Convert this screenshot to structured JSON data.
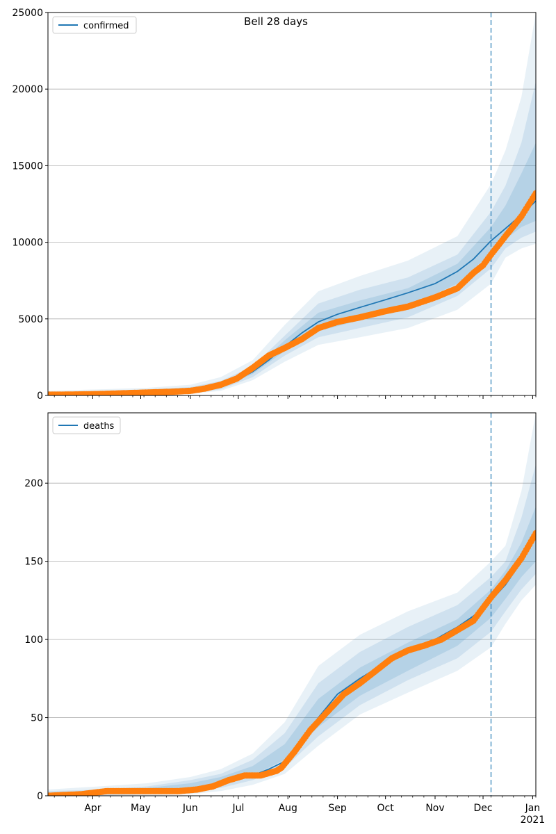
{
  "figure": {
    "title": "Bell 28 days"
  },
  "chart_data": [
    {
      "type": "line",
      "ylim": [
        0,
        25000
      ],
      "yticks": [
        0,
        5000,
        10000,
        15000,
        20000,
        25000
      ],
      "ytick_labels": [
        "0",
        "5000",
        "10000",
        "15000",
        "20000",
        "25000"
      ],
      "x_range": [
        "2020-03-04",
        "2021-01-03"
      ],
      "forecast_start": "2020-12-06",
      "grid": "horizontal",
      "legend_position": "top-left",
      "series": [
        {
          "name": "confirmed",
          "kind": "model median line",
          "color": "#1f77b4",
          "x": [
            "2020-03-04",
            "2020-03-20",
            "2020-04-05",
            "2020-04-20",
            "2020-05-05",
            "2020-05-20",
            "2020-06-01",
            "2020-06-10",
            "2020-06-20",
            "2020-06-30",
            "2020-07-10",
            "2020-07-20",
            "2020-07-30",
            "2020-08-10",
            "2020-08-20",
            "2020-09-01",
            "2020-09-15",
            "2020-10-01",
            "2020-10-15",
            "2020-11-01",
            "2020-11-15",
            "2020-11-25",
            "2020-12-06",
            "2020-12-15",
            "2020-12-25",
            "2021-01-03"
          ],
          "y": [
            50,
            70,
            100,
            140,
            190,
            250,
            330,
            450,
            650,
            1000,
            1550,
            2300,
            3200,
            4100,
            4800,
            5300,
            5750,
            6250,
            6700,
            7300,
            8100,
            8900,
            10100,
            10900,
            11800,
            12700
          ]
        },
        {
          "name": "confirmed observed",
          "kind": "observations",
          "color": "#ff7f0e",
          "x": [
            "2020-03-04",
            "2020-03-20",
            "2020-04-05",
            "2020-04-20",
            "2020-05-05",
            "2020-05-20",
            "2020-06-01",
            "2020-06-10",
            "2020-06-20",
            "2020-06-30",
            "2020-07-10",
            "2020-07-20",
            "2020-07-30",
            "2020-08-10",
            "2020-08-20",
            "2020-09-01",
            "2020-09-15",
            "2020-10-01",
            "2020-10-15",
            "2020-11-01",
            "2020-11-15",
            "2020-11-25",
            "2020-12-01",
            "2020-12-06",
            "2020-12-15",
            "2020-12-25",
            "2021-01-03"
          ],
          "y": [
            50,
            60,
            90,
            140,
            190,
            240,
            300,
            450,
            700,
            1100,
            1800,
            2600,
            3100,
            3700,
            4400,
            4800,
            5100,
            5500,
            5800,
            6400,
            7000,
            8000,
            8500,
            9200,
            10400,
            11700,
            13200
          ]
        }
      ],
      "bands": [
        {
          "label": "outer band",
          "opacity": 0.1,
          "x": [
            "2020-03-04",
            "2020-04-05",
            "2020-05-05",
            "2020-06-01",
            "2020-06-20",
            "2020-07-10",
            "2020-07-30",
            "2020-08-20",
            "2020-09-15",
            "2020-10-15",
            "2020-11-15",
            "2020-12-06",
            "2020-12-15",
            "2020-12-25",
            "2021-01-03"
          ],
          "upper": [
            300,
            400,
            500,
            700,
            1200,
            2300,
            4600,
            6800,
            7800,
            8800,
            10400,
            13800,
            16000,
            19500,
            25000
          ],
          "lower": [
            0,
            0,
            0,
            100,
            300,
            1000,
            2200,
            3300,
            3800,
            4400,
            5600,
            7300,
            9000,
            9600,
            9900
          ]
        },
        {
          "label": "middle band",
          "opacity": 0.12,
          "x": [
            "2020-03-04",
            "2020-04-05",
            "2020-05-05",
            "2020-06-01",
            "2020-06-20",
            "2020-07-10",
            "2020-07-30",
            "2020-08-20",
            "2020-09-15",
            "2020-10-15",
            "2020-11-15",
            "2020-12-06",
            "2020-12-15",
            "2020-12-25",
            "2021-01-03"
          ],
          "upper": [
            200,
            300,
            400,
            550,
            950,
            1900,
            3900,
            6000,
            6900,
            7700,
            9200,
            12000,
            13700,
            16500,
            20500
          ],
          "lower": [
            0,
            0,
            50,
            150,
            400,
            1200,
            2600,
            3800,
            4400,
            5100,
            6500,
            8300,
            9600,
            10300,
            10700
          ]
        },
        {
          "label": "inner band",
          "opacity": 0.14,
          "x": [
            "2020-03-04",
            "2020-04-05",
            "2020-05-05",
            "2020-06-01",
            "2020-06-20",
            "2020-07-10",
            "2020-07-30",
            "2020-08-20",
            "2020-09-15",
            "2020-10-15",
            "2020-11-15",
            "2020-12-06",
            "2020-12-15",
            "2020-12-25",
            "2021-01-03"
          ],
          "upper": [
            120,
            180,
            260,
            430,
            800,
            1700,
            3600,
            5400,
            6200,
            7000,
            8600,
            11000,
            12400,
            14500,
            16500
          ],
          "lower": [
            20,
            40,
            120,
            250,
            500,
            1400,
            2900,
            4200,
            4900,
            5800,
            7300,
            9300,
            10200,
            11000,
            11400
          ]
        }
      ]
    },
    {
      "type": "line",
      "ylim": [
        0,
        245
      ],
      "yticks": [
        0,
        50,
        100,
        150,
        200
      ],
      "ytick_labels": [
        "0",
        "50",
        "100",
        "150",
        "200"
      ],
      "x_range": [
        "2020-03-04",
        "2021-01-03"
      ],
      "forecast_start": "2020-12-06",
      "grid": "horizontal",
      "legend_position": "top-left",
      "xtick_labels": [
        {
          "date": "2020-04-01",
          "label": "Apr"
        },
        {
          "date": "2020-05-01",
          "label": "May"
        },
        {
          "date": "2020-06-01",
          "label": "Jun"
        },
        {
          "date": "2020-07-01",
          "label": "Jul"
        },
        {
          "date": "2020-08-01",
          "label": "Aug"
        },
        {
          "date": "2020-09-01",
          "label": "Sep"
        },
        {
          "date": "2020-10-01",
          "label": "Oct"
        },
        {
          "date": "2020-11-01",
          "label": "Nov"
        },
        {
          "date": "2020-12-01",
          "label": "Dec"
        },
        {
          "date": "2021-01-01",
          "label": "Jan",
          "sublabel": "2021"
        }
      ],
      "series": [
        {
          "name": "deaths",
          "kind": "model median line",
          "color": "#1f77b4",
          "x": [
            "2020-03-04",
            "2020-03-20",
            "2020-04-05",
            "2020-04-20",
            "2020-05-05",
            "2020-05-20",
            "2020-06-01",
            "2020-06-15",
            "2020-06-30",
            "2020-07-10",
            "2020-07-20",
            "2020-07-30",
            "2020-08-10",
            "2020-08-20",
            "2020-09-01",
            "2020-09-15",
            "2020-10-01",
            "2020-10-15",
            "2020-11-01",
            "2020-11-15",
            "2020-11-25",
            "2020-12-06",
            "2020-12-15",
            "2020-12-25",
            "2021-01-03"
          ],
          "y": [
            0,
            1,
            2,
            3,
            3,
            4,
            5,
            7,
            10,
            13,
            17,
            22,
            35,
            50,
            65,
            75,
            85,
            92,
            100,
            108,
            115,
            125,
            135,
            150,
            165
          ]
        },
        {
          "name": "deaths observed",
          "kind": "observations",
          "color": "#ff7f0e",
          "x": [
            "2020-03-04",
            "2020-03-25",
            "2020-04-10",
            "2020-04-25",
            "2020-05-10",
            "2020-05-25",
            "2020-06-05",
            "2020-06-15",
            "2020-06-25",
            "2020-07-05",
            "2020-07-15",
            "2020-07-25",
            "2020-07-28",
            "2020-08-05",
            "2020-08-15",
            "2020-08-25",
            "2020-09-05",
            "2020-09-15",
            "2020-09-25",
            "2020-10-05",
            "2020-10-15",
            "2020-10-25",
            "2020-11-05",
            "2020-11-15",
            "2020-11-25",
            "2020-12-06",
            "2020-12-15",
            "2020-12-25",
            "2021-01-03"
          ],
          "y": [
            0,
            1,
            3,
            3,
            3,
            3,
            4,
            6,
            10,
            13,
            13,
            16,
            18,
            28,
            42,
            53,
            65,
            72,
            80,
            88,
            93,
            96,
            100,
            106,
            112,
            127,
            138,
            152,
            168
          ]
        }
      ],
      "bands": [
        {
          "label": "outer band",
          "opacity": 0.1,
          "x": [
            "2020-03-04",
            "2020-04-05",
            "2020-05-05",
            "2020-06-01",
            "2020-06-20",
            "2020-07-10",
            "2020-07-30",
            "2020-08-20",
            "2020-09-15",
            "2020-10-15",
            "2020-11-15",
            "2020-12-06",
            "2020-12-15",
            "2020-12-25",
            "2021-01-03"
          ],
          "upper": [
            4,
            6,
            8,
            12,
            17,
            27,
            47,
            83,
            103,
            118,
            130,
            150,
            160,
            195,
            245
          ],
          "lower": [
            0,
            0,
            0,
            1,
            3,
            7,
            14,
            32,
            52,
            66,
            80,
            95,
            110,
            125,
            135
          ]
        },
        {
          "label": "middle band",
          "opacity": 0.12,
          "x": [
            "2020-03-04",
            "2020-04-05",
            "2020-05-05",
            "2020-06-01",
            "2020-06-20",
            "2020-07-10",
            "2020-07-30",
            "2020-08-20",
            "2020-09-15",
            "2020-10-15",
            "2020-11-15",
            "2020-12-06",
            "2020-12-15",
            "2020-12-25",
            "2021-01-03"
          ],
          "upper": [
            3,
            4,
            6,
            10,
            14,
            23,
            40,
            72,
            92,
            108,
            122,
            140,
            150,
            178,
            212
          ],
          "lower": [
            0,
            0,
            1,
            3,
            5,
            10,
            18,
            38,
            58,
            74,
            88,
            105,
            118,
            132,
            142
          ]
        },
        {
          "label": "inner band",
          "opacity": 0.14,
          "x": [
            "2020-03-04",
            "2020-04-05",
            "2020-05-05",
            "2020-06-01",
            "2020-06-20",
            "2020-07-10",
            "2020-07-30",
            "2020-08-20",
            "2020-09-15",
            "2020-10-15",
            "2020-11-15",
            "2020-12-06",
            "2020-12-15",
            "2020-12-25",
            "2021-01-03"
          ],
          "upper": [
            2,
            3,
            5,
            8,
            12,
            19,
            33,
            62,
            82,
            98,
            113,
            132,
            144,
            162,
            185
          ],
          "lower": [
            0,
            1,
            2,
            4,
            7,
            13,
            23,
            44,
            64,
            80,
            96,
            114,
            126,
            140,
            150
          ]
        }
      ]
    }
  ]
}
